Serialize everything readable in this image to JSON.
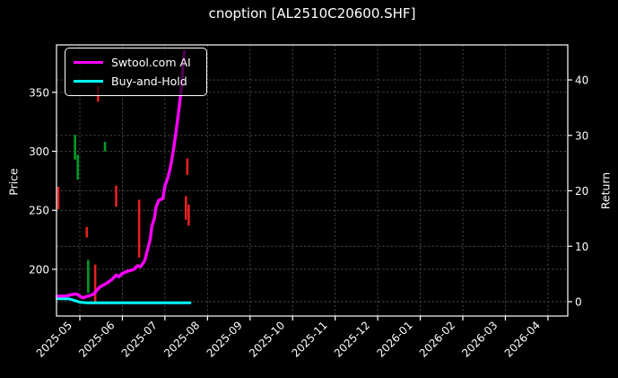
{
  "chart_data": {
    "type": "mixed",
    "title": "cnoption [AL2510C20600.SHF]",
    "ylabel_left": "Price",
    "ylabel_right": "Return",
    "x_ticks": [
      "2025-05",
      "2025-06",
      "2025-07",
      "2025-08",
      "2025-09",
      "2025-10",
      "2025-11",
      "2025-12",
      "2026-01",
      "2026-02",
      "2026-03",
      "2026-04"
    ],
    "y_left_ticks": [
      200,
      250,
      300,
      350
    ],
    "y_right_ticks": [
      0,
      10,
      20,
      30,
      40
    ],
    "x_domain_months": [
      -0.548,
      11.466
    ],
    "y_left_domain": [
      160.4,
      390.2
    ],
    "y_right_domain": [
      -2.59,
      46.32
    ],
    "grid": true,
    "legend_position": "upper left",
    "background_color": "#000000",
    "text_color": "#ffffff",
    "grid_color": "#4f4f4f",
    "candle_up_color": "#009926",
    "candle_down_color": "#e62020",
    "candles": [
      {
        "date": "2025-04-16",
        "high": 270,
        "low": 251,
        "dir": "down"
      },
      {
        "date": "2025-04-28",
        "high": 314,
        "low": 293,
        "dir": "up"
      },
      {
        "date": "2025-04-30",
        "high": 297,
        "low": 276,
        "dir": "up"
      },
      {
        "date": "2025-05-06",
        "high": 236,
        "low": 227,
        "dir": "down"
      },
      {
        "date": "2025-05-07",
        "high": 208,
        "low": 180,
        "dir": "up"
      },
      {
        "date": "2025-05-12",
        "high": 204,
        "low": 172,
        "dir": "down"
      },
      {
        "date": "2025-05-14",
        "high": 355,
        "low": 342,
        "dir": "down"
      },
      {
        "date": "2025-05-19",
        "high": 308,
        "low": 300,
        "dir": "up"
      },
      {
        "date": "2025-05-27",
        "high": 271,
        "low": 253,
        "dir": "down"
      },
      {
        "date": "2025-06-13",
        "high": 259,
        "low": 210,
        "dir": "down"
      },
      {
        "date": "2025-07-16",
        "high": 262,
        "low": 242,
        "dir": "down"
      },
      {
        "date": "2025-07-17",
        "high": 294,
        "low": 280,
        "dir": "down"
      },
      {
        "date": "2025-07-18",
        "high": 255,
        "low": 237,
        "dir": "down"
      }
    ],
    "series": [
      {
        "name": "Swtool.com AI",
        "axis": "right",
        "color": "#ff00ff",
        "points": [
          [
            "2025-04-15",
            1.0
          ],
          [
            "2025-04-21",
            1.0
          ],
          [
            "2025-04-26",
            1.3
          ],
          [
            "2025-04-29",
            1.4
          ],
          [
            "2025-05-03",
            0.7
          ],
          [
            "2025-05-07",
            1.0
          ],
          [
            "2025-05-11",
            1.4
          ],
          [
            "2025-05-15",
            2.6
          ],
          [
            "2025-05-20",
            3.3
          ],
          [
            "2025-05-24",
            4.0
          ],
          [
            "2025-05-27",
            4.8
          ],
          [
            "2025-05-29",
            4.5
          ],
          [
            "2025-06-01",
            5.1
          ],
          [
            "2025-06-05",
            5.5
          ],
          [
            "2025-06-09",
            5.8
          ],
          [
            "2025-06-12",
            6.5
          ],
          [
            "2025-06-14",
            6.3
          ],
          [
            "2025-06-17",
            7.4
          ],
          [
            "2025-06-19",
            9.4
          ],
          [
            "2025-06-21",
            11.3
          ],
          [
            "2025-06-22",
            13.5
          ],
          [
            "2025-06-24",
            15.2
          ],
          [
            "2025-06-25",
            17.0
          ],
          [
            "2025-06-27",
            18.3
          ],
          [
            "2025-06-30",
            18.6
          ],
          [
            "2025-07-01",
            20.9
          ],
          [
            "2025-07-03",
            22.3
          ],
          [
            "2025-07-05",
            24.3
          ],
          [
            "2025-07-07",
            27.2
          ],
          [
            "2025-07-09",
            30.8
          ],
          [
            "2025-07-11",
            34.7
          ],
          [
            "2025-07-13",
            39.0
          ],
          [
            "2025-07-14",
            43.0
          ],
          [
            "2025-07-15",
            45.1
          ]
        ]
      },
      {
        "name": "Buy-and-Hold",
        "axis": "right",
        "color": "#00ffff",
        "points": [
          [
            "2025-04-15",
            0.55
          ],
          [
            "2025-04-24",
            0.5
          ],
          [
            "2025-04-28",
            0.2
          ],
          [
            "2025-05-01",
            -0.1
          ],
          [
            "2025-05-06",
            -0.2
          ],
          [
            "2025-07-19",
            -0.2
          ]
        ]
      }
    ]
  }
}
